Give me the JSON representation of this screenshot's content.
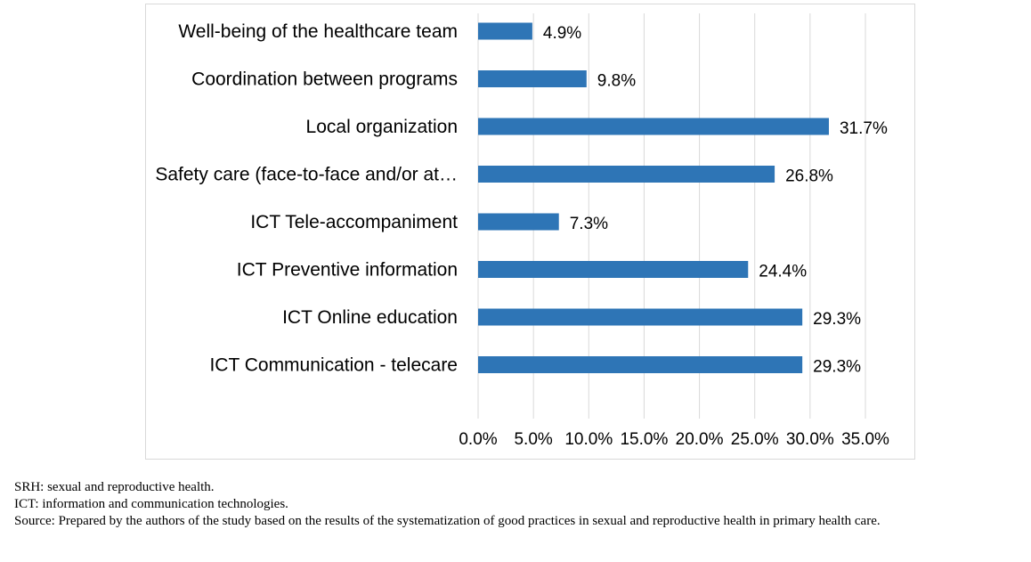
{
  "chart_data": {
    "type": "bar",
    "orientation": "horizontal",
    "categories": [
      "Well-being of the healthcare team",
      "Coordination between programs",
      "Local organization",
      "Safety care (face-to-face and/or at…",
      "ICT Tele-accompaniment",
      "ICT Preventive information",
      "ICT Online education",
      "ICT Communication - telecare"
    ],
    "values": [
      4.9,
      9.8,
      31.7,
      26.8,
      7.3,
      24.4,
      29.3,
      29.3
    ],
    "value_labels": [
      "4.9%",
      "9.8%",
      "31.7%",
      "26.8%",
      "7.3%",
      "24.4%",
      "29.3%",
      "29.3%"
    ],
    "xlim": [
      0,
      35
    ],
    "x_ticks": [
      "0.0%",
      "5.0%",
      "10.0%",
      "15.0%",
      "20.0%",
      "25.0%",
      "30.0%",
      "35.0%"
    ],
    "grid": true,
    "bar_color": "#2e75b6"
  },
  "notes": {
    "line1": "SRH: sexual and reproductive health.",
    "line2": "ICT: information and communication technologies.",
    "line3": "Source: Prepared by the authors of the study based on the results of the systematization of good practices in sexual and reproductive health in primary health care."
  }
}
